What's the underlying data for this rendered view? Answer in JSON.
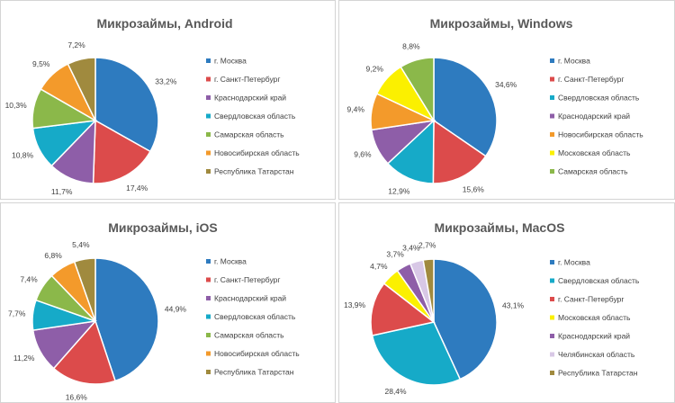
{
  "colors": {
    "blue": "#2e7bbf",
    "red": "#dc4b4b",
    "purple": "#8e5ea8",
    "cyan": "#16aac8",
    "green": "#8bb84a",
    "orange": "#f39a2b",
    "olive": "#a08a3e",
    "yellow": "#fbf000",
    "lavender": "#d8c8e6"
  },
  "chart_data": [
    {
      "type": "pie",
      "title": "Микрозаймы, Android",
      "labels": [
        "г. Москва",
        "г. Санкт-Петербург",
        "Краснодарский край",
        "Свердловская область",
        "Самарская область",
        "Новосибирская область",
        "Республика Татарстан"
      ],
      "values": [
        33.2,
        17.4,
        11.7,
        10.8,
        10.3,
        9.5,
        7.2
      ],
      "value_labels": [
        "33,2%",
        "17,4%",
        "11,7%",
        "10,8%",
        "10,3%",
        "9,5%",
        "7,2%"
      ],
      "colors": [
        "#2e7bbf",
        "#dc4b4b",
        "#8e5ea8",
        "#16aac8",
        "#8bb84a",
        "#f39a2b",
        "#a08a3e"
      ],
      "legend": "right"
    },
    {
      "type": "pie",
      "title": "Микрозаймы, Windows",
      "labels": [
        "г. Москва",
        "г. Санкт-Петербург",
        "Свердловская область",
        "Краснодарский край",
        "Новосибирская область",
        "Московская область",
        "Самарская область"
      ],
      "values": [
        34.6,
        15.6,
        12.9,
        9.6,
        9.4,
        9.2,
        8.8
      ],
      "value_labels": [
        "34,6%",
        "15,6%",
        "12,9%",
        "9,6%",
        "9,4%",
        "9,2%",
        "8,8%"
      ],
      "colors": [
        "#2e7bbf",
        "#dc4b4b",
        "#16aac8",
        "#8e5ea8",
        "#f39a2b",
        "#fbf000",
        "#8bb84a"
      ],
      "legend": "right"
    },
    {
      "type": "pie",
      "title": "Микрозаймы, iOS",
      "labels": [
        "г. Москва",
        "г. Санкт-Петербург",
        "Краснодарский край",
        "Свердловская область",
        "Самарская область",
        "Новосибирская область",
        "Республика Татарстан"
      ],
      "values": [
        44.9,
        16.6,
        11.2,
        7.7,
        7.4,
        6.8,
        5.4
      ],
      "value_labels": [
        "44,9%",
        "16,6%",
        "11,2%",
        "7,7%",
        "7,4%",
        "6,8%",
        "5,4%"
      ],
      "colors": [
        "#2e7bbf",
        "#dc4b4b",
        "#8e5ea8",
        "#16aac8",
        "#8bb84a",
        "#f39a2b",
        "#a08a3e"
      ],
      "legend": "right"
    },
    {
      "type": "pie",
      "title": "Микрозаймы, MacOS",
      "labels": [
        "г. Москва",
        "Свердловская область",
        "г. Санкт-Петербург",
        "Московская область",
        "Краснодарский край",
        "Челябинская область",
        "Республика Татарстан"
      ],
      "values": [
        43.1,
        28.4,
        13.9,
        4.7,
        3.7,
        3.4,
        2.7
      ],
      "value_labels": [
        "43,1%",
        "28,4%",
        "13,9%",
        "4,7%",
        "3,7%",
        "3,4%",
        "2,7%"
      ],
      "colors": [
        "#2e7bbf",
        "#16aac8",
        "#dc4b4b",
        "#fbf000",
        "#8e5ea8",
        "#d8c8e6",
        "#a08a3e"
      ],
      "legend": "right"
    }
  ]
}
